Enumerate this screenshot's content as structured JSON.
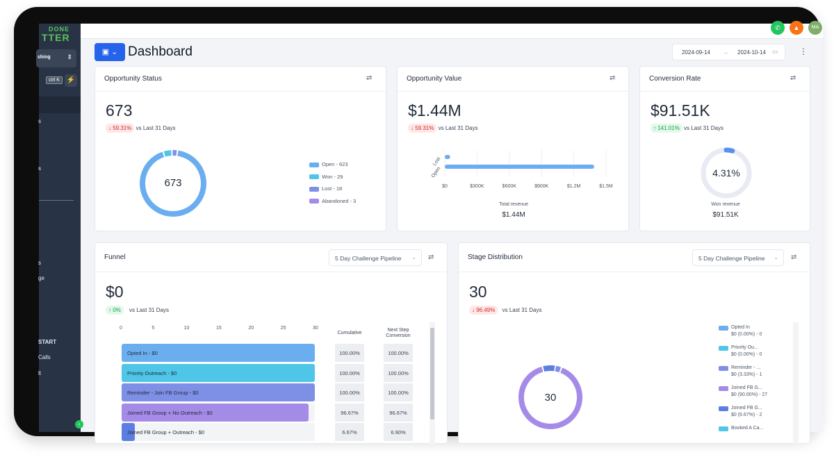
{
  "sidebar": {
    "brand_line1": "DONE",
    "brand_line2": "TTER",
    "location": "shing",
    "search_shortcut": "ctrl K",
    "fragments": [
      "s",
      "s",
      "s",
      "ge",
      "START",
      "Calls",
      "lt"
    ]
  },
  "topbar": {
    "phone_icon": "phone-icon",
    "bell_icon": "bell-icon",
    "avatar_initials": "MA"
  },
  "header": {
    "title": "Dashboard",
    "date_start": "2024-09-14",
    "date_end": "2024-10-14",
    "date_arrow": "→"
  },
  "opportunity_status": {
    "title": "Opportunity Status",
    "value": "673",
    "change": "↓ 59.31%",
    "change_label": "vs Last 31 Days",
    "donut_center": "673",
    "legend": [
      {
        "label": "Open - 623",
        "color": "#6aaef0"
      },
      {
        "label": "Won - 29",
        "color": "#4fc6e8"
      },
      {
        "label": "Lost - 18",
        "color": "#7e8fe6"
      },
      {
        "label": "Abandoned - 3",
        "color": "#a58be8"
      }
    ]
  },
  "opportunity_value": {
    "title": "Opportunity Value",
    "value": "$1.44M",
    "change": "↓ 59.31%",
    "change_label": "vs Last 31 Days",
    "footer_label": "Total revenue",
    "footer_value": "$1.44M"
  },
  "conversion_rate": {
    "title": "Conversion Rate",
    "value": "$91.51K",
    "change": "↑ 141.01%",
    "change_label": "vs Last 31 Days",
    "gauge_value": "4.31%",
    "gauge_fraction": 0.0431,
    "footer_label": "Won revenue",
    "footer_value": "$91.51K"
  },
  "funnel": {
    "title": "Funnel",
    "pipeline": "5 Day Challenge Pipeline",
    "value": "$0",
    "change": "↑ 0%",
    "change_label": "vs Last 31 Days",
    "axis_ticks": [
      "0",
      "5",
      "10",
      "15",
      "20",
      "25",
      "30"
    ],
    "cumulative_header": "Cumulative",
    "next_step_header_1": "Next Step",
    "next_step_header_2": "Conversion",
    "rows": [
      {
        "label": "Opted In - $0",
        "count": 30,
        "cumulative": "100.00%",
        "next": "100.00%",
        "color": "#6aaef0"
      },
      {
        "label": "Priority Outreach - $0",
        "count": 30,
        "cumulative": "100.00%",
        "next": "100.00%",
        "color": "#4fc6e8"
      },
      {
        "label": "Reminder - Join FB Group - $0",
        "count": 30,
        "cumulative": "100.00%",
        "next": "100.00%",
        "color": "#7e8fe6"
      },
      {
        "label": "Joined FB Group + No Outreach - $0",
        "count": 29,
        "cumulative": "96.67%",
        "next": "96.67%",
        "color": "#a58be8"
      },
      {
        "label": "Joined FB Group + Outreach - $0",
        "count": 2,
        "cumulative": "6.67%",
        "next": "6.90%",
        "color": "#5b7ee0"
      }
    ]
  },
  "stage_distribution": {
    "title": "Stage Distribution",
    "pipeline": "5 Day Challenge Pipeline",
    "value": "30",
    "change": "↓ 96.49%",
    "change_label": "vs Last 31 Days",
    "donut_center": "30",
    "legend": [
      {
        "name": "Opted In",
        "value": "$0 (0.00%) - 0",
        "color": "#6aaef0"
      },
      {
        "name": "Priority Ou...",
        "value": "$0 (0.00%) - 0",
        "color": "#4fc6e8"
      },
      {
        "name": "Reminder - ...",
        "value": "$0 (3.33%) - 1",
        "color": "#7e8fe6"
      },
      {
        "name": "Joined FB G...",
        "value": "$0 (90.00%) - 27",
        "color": "#a58be8"
      },
      {
        "name": "Joined FB G...",
        "value": "$0 (6.67%) - 2",
        "color": "#5b7ee0"
      },
      {
        "name": "Booked A Ca...",
        "value": "",
        "color": "#4fc6e8"
      }
    ]
  },
  "chart_data": [
    {
      "type": "pie",
      "title": "Opportunity Status",
      "categories": [
        "Open",
        "Won",
        "Lost",
        "Abandoned"
      ],
      "values": [
        623,
        29,
        18,
        3
      ]
    },
    {
      "type": "bar",
      "title": "Opportunity Value",
      "orientation": "horizontal",
      "categories": [
        "Lost",
        "Open"
      ],
      "values": [
        0.05,
        1.39
      ],
      "xlim": [
        0,
        1.5
      ],
      "tick_labels": [
        "$0",
        "$300K",
        "$600K",
        "$900K",
        "$1.2M",
        "$1.5M"
      ],
      "xlabel": "Total revenue"
    },
    {
      "type": "bar",
      "title": "Funnel",
      "orientation": "horizontal",
      "categories": [
        "Opted In",
        "Priority Outreach",
        "Reminder - Join FB Group",
        "Joined FB Group + No Outreach",
        "Joined FB Group + Outreach"
      ],
      "values": [
        30,
        30,
        30,
        29,
        2
      ],
      "xlim": [
        0,
        30
      ]
    },
    {
      "type": "pie",
      "title": "Stage Distribution",
      "categories": [
        "Opted In",
        "Priority Outreach",
        "Reminder",
        "Joined FB Group + No Outreach",
        "Joined FB Group + Outreach"
      ],
      "values": [
        0,
        0,
        1,
        27,
        2
      ]
    }
  ]
}
